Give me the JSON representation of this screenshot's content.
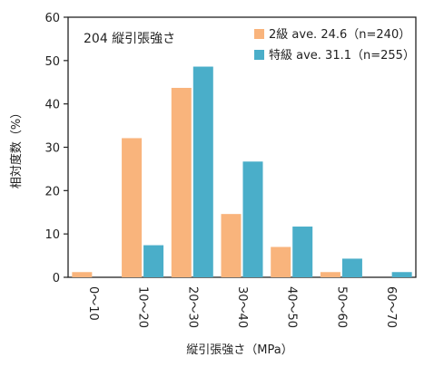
{
  "chart_data": {
    "type": "bar",
    "title": "204 縦引張強さ",
    "xlabel": "縦引張強さ（MPa）",
    "ylabel": "相対度数（%）",
    "categories": [
      "0～10",
      "10～20",
      "20～30",
      "30～40",
      "40～50",
      "50～60",
      "60～70"
    ],
    "series": [
      {
        "name": "2級 ave. 24.6（n=240）",
        "color": "#f9b47c",
        "values": [
          1.2,
          32.1,
          43.7,
          14.6,
          7.0,
          1.2,
          0
        ]
      },
      {
        "name": "特級 ave. 31.1（n=255）",
        "color": "#4aaec9",
        "values": [
          0,
          7.4,
          48.6,
          26.7,
          11.7,
          4.3,
          1.2
        ]
      }
    ],
    "ylim": [
      0,
      60
    ],
    "yticks": [
      0,
      10,
      20,
      30,
      40,
      50,
      60
    ],
    "legend_position": "top-right",
    "grid": false
  }
}
